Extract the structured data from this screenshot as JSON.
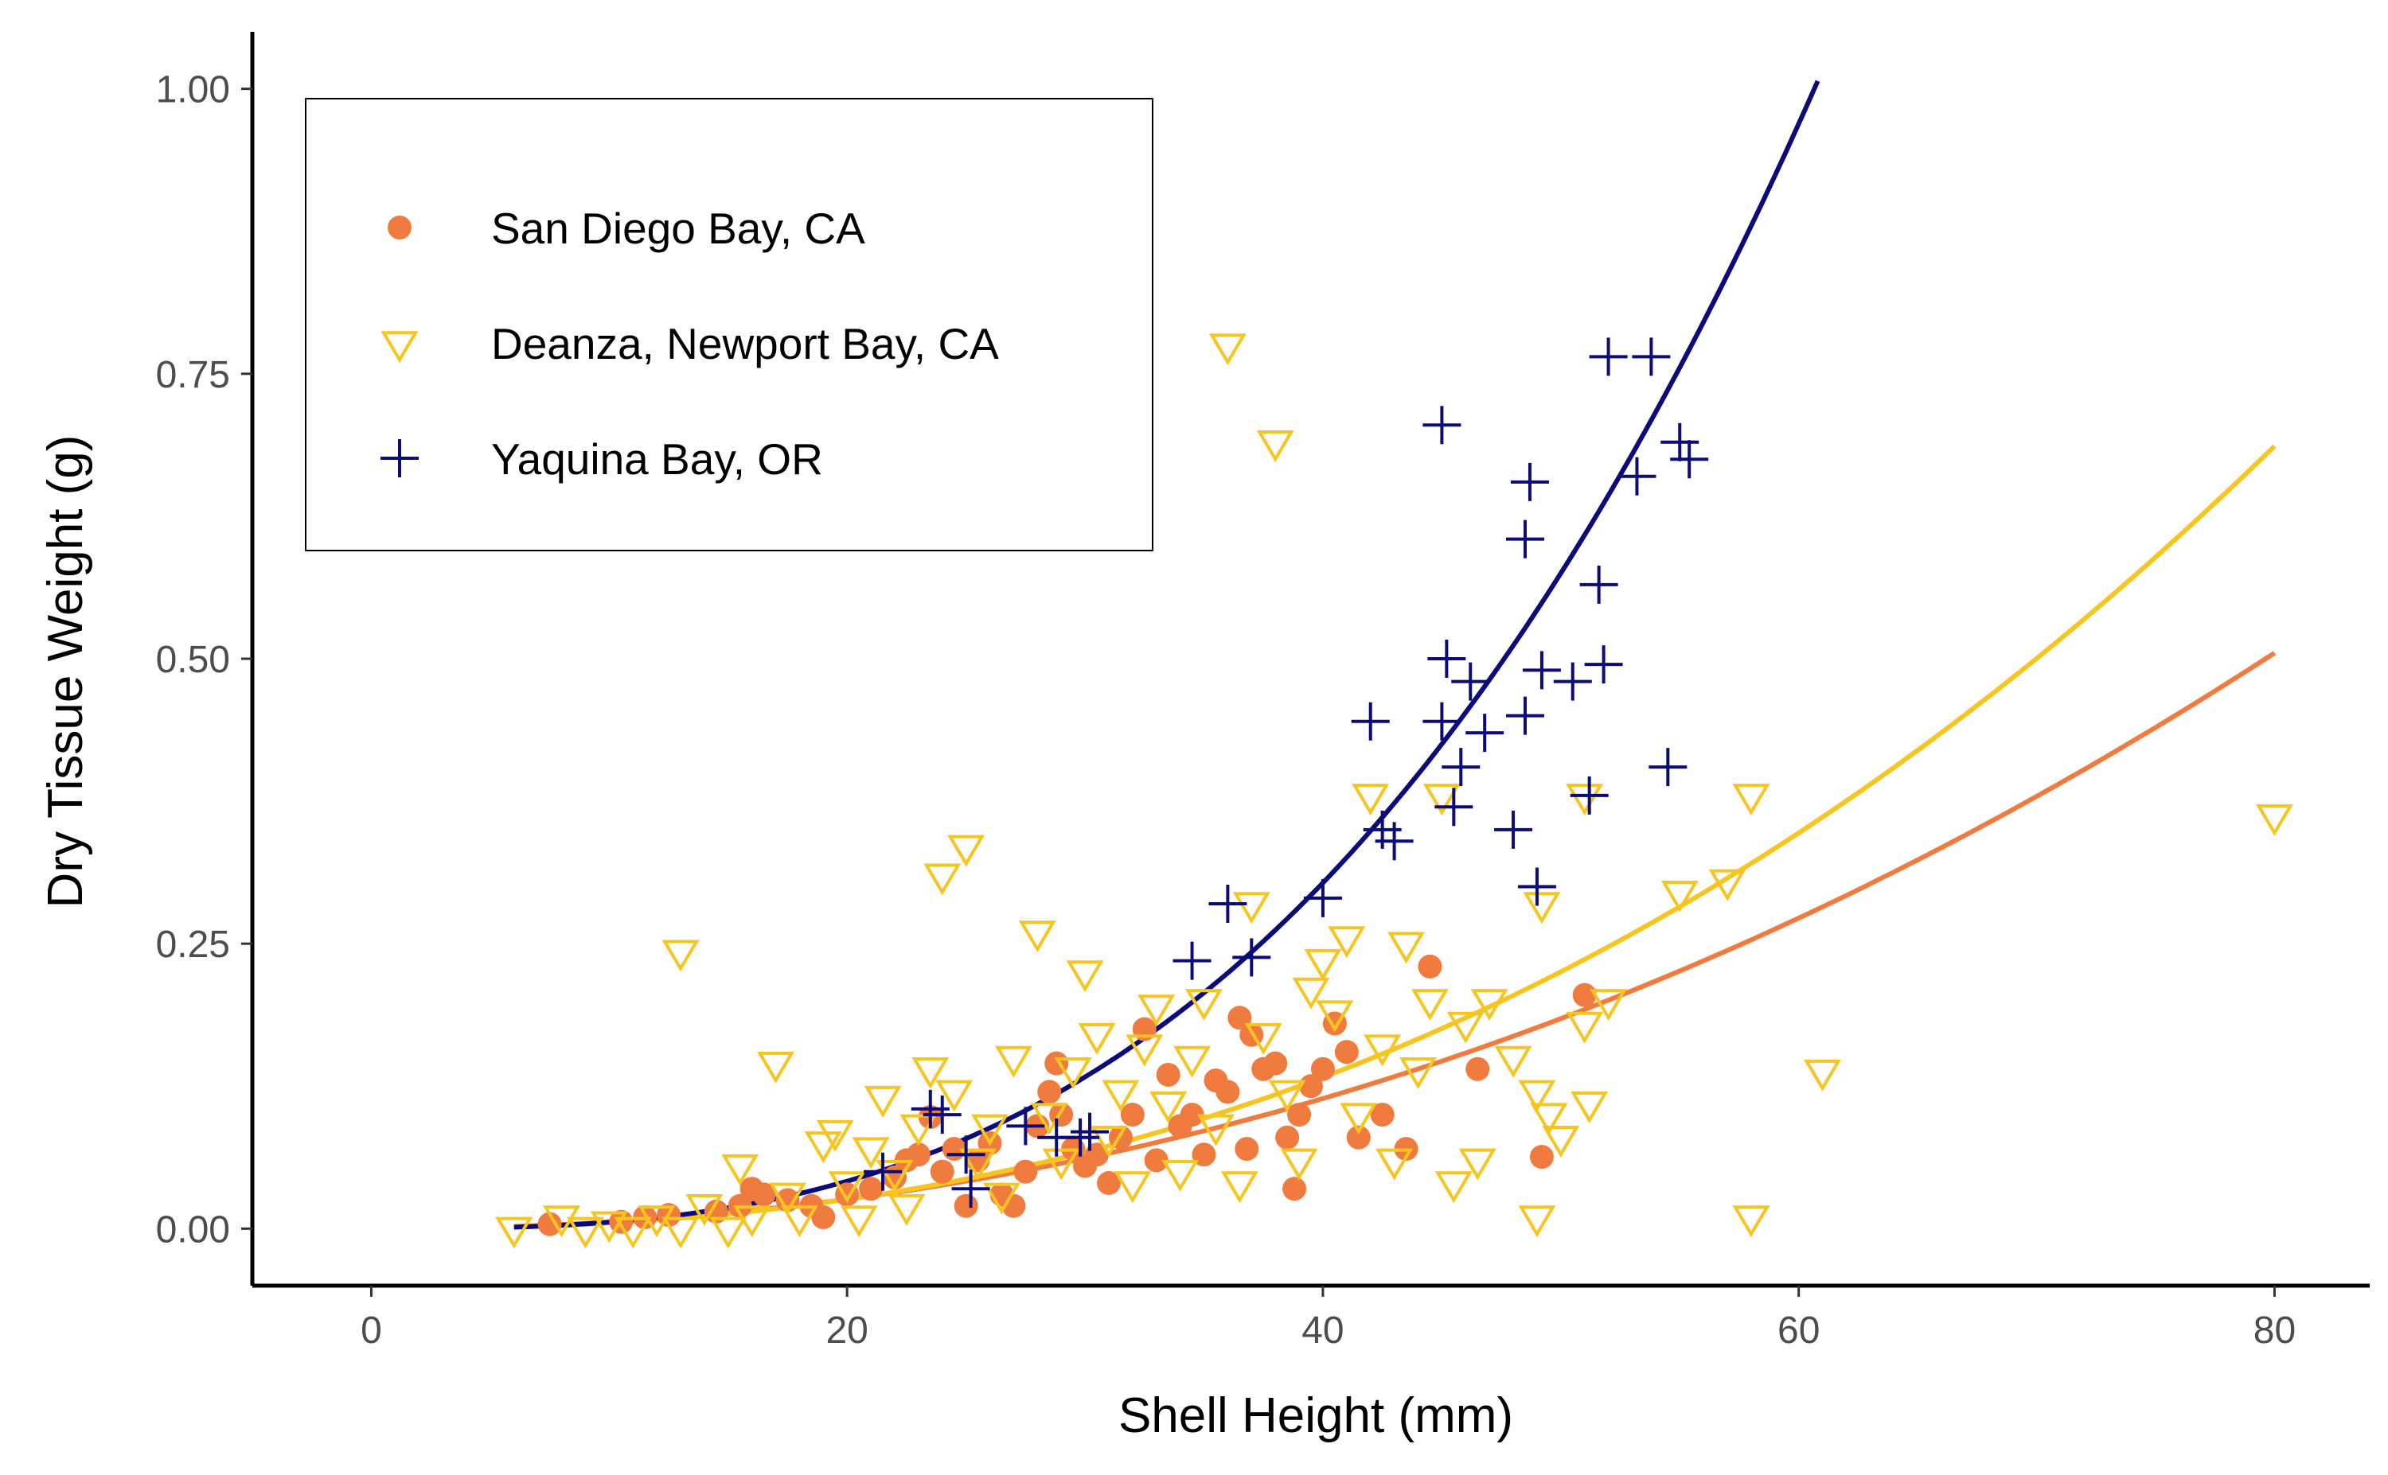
{
  "chart_data": {
    "type": "scatter",
    "xlabel": "Shell Height (mm)",
    "ylabel": "Dry Tissue Weight (g)",
    "xlim": [
      -5,
      84
    ],
    "ylim": [
      -0.05,
      1.05
    ],
    "x_ticks": [
      0,
      20,
      40,
      60,
      80
    ],
    "y_ticks": [
      0.0,
      0.25,
      0.5,
      0.75,
      1.0
    ],
    "x_tick_labels": [
      "0",
      "20",
      "40",
      "60",
      "80"
    ],
    "y_tick_labels": [
      "0.00",
      "0.25",
      "0.50",
      "0.75",
      "1.00"
    ],
    "grid": false,
    "legend_position": "top-left",
    "series": [
      {
        "name": "San Diego Bay, CA",
        "marker": "circle-filled",
        "color": "#ef7b3e",
        "fit": {
          "a": 4.18e-05,
          "b": 2.145,
          "x_range": [
            6.0,
            80.0
          ]
        },
        "points": [
          [
            7.5,
            0.004
          ],
          [
            10.5,
            0.006
          ],
          [
            11.5,
            0.01
          ],
          [
            12.5,
            0.012
          ],
          [
            14.5,
            0.015
          ],
          [
            15.5,
            0.02
          ],
          [
            16.0,
            0.035
          ],
          [
            16.5,
            0.03
          ],
          [
            17.5,
            0.025
          ],
          [
            18.5,
            0.02
          ],
          [
            19.0,
            0.01
          ],
          [
            20.0,
            0.03
          ],
          [
            21.0,
            0.035
          ],
          [
            22.0,
            0.045
          ],
          [
            22.5,
            0.06
          ],
          [
            23.0,
            0.065
          ],
          [
            23.5,
            0.098
          ],
          [
            24.0,
            0.05
          ],
          [
            24.5,
            0.07
          ],
          [
            25.0,
            0.02
          ],
          [
            25.5,
            0.06
          ],
          [
            26.0,
            0.075
          ],
          [
            26.5,
            0.03
          ],
          [
            27.0,
            0.02
          ],
          [
            27.5,
            0.05
          ],
          [
            28.0,
            0.09
          ],
          [
            28.5,
            0.12
          ],
          [
            28.8,
            0.145
          ],
          [
            29.0,
            0.1
          ],
          [
            29.5,
            0.07
          ],
          [
            30.0,
            0.055
          ],
          [
            30.5,
            0.065
          ],
          [
            31.0,
            0.04
          ],
          [
            31.5,
            0.08
          ],
          [
            32.0,
            0.1
          ],
          [
            32.5,
            0.175
          ],
          [
            33.0,
            0.06
          ],
          [
            33.5,
            0.135
          ],
          [
            34.0,
            0.09
          ],
          [
            34.5,
            0.1
          ],
          [
            35.0,
            0.065
          ],
          [
            35.5,
            0.13
          ],
          [
            36.0,
            0.12
          ],
          [
            36.5,
            0.185
          ],
          [
            36.8,
            0.07
          ],
          [
            37.0,
            0.17
          ],
          [
            37.5,
            0.14
          ],
          [
            38.0,
            0.145
          ],
          [
            38.5,
            0.08
          ],
          [
            38.8,
            0.035
          ],
          [
            39.0,
            0.1
          ],
          [
            39.5,
            0.125
          ],
          [
            40.0,
            0.14
          ],
          [
            40.5,
            0.18
          ],
          [
            41.0,
            0.155
          ],
          [
            41.5,
            0.08
          ],
          [
            42.5,
            0.1
          ],
          [
            43.5,
            0.07
          ],
          [
            44.5,
            0.23
          ],
          [
            46.5,
            0.14
          ],
          [
            49.2,
            0.063
          ],
          [
            51.0,
            0.205
          ]
        ]
      },
      {
        "name": "Deanza, Newport Bay, CA",
        "marker": "triangle-down-open",
        "color": "#f7c520",
        "fit": {
          "a": 2.12e-05,
          "b": 2.37,
          "x_range": [
            6.0,
            80.0
          ]
        },
        "points": [
          [
            6.0,
            0.0
          ],
          [
            8.0,
            0.01
          ],
          [
            9.0,
            0.0
          ],
          [
            10.0,
            0.005
          ],
          [
            11.0,
            0.0
          ],
          [
            12.0,
            0.01
          ],
          [
            13.0,
            0.0
          ],
          [
            13.0,
            0.243
          ],
          [
            14.0,
            0.02
          ],
          [
            15.0,
            0.0
          ],
          [
            15.5,
            0.055
          ],
          [
            16.0,
            0.01
          ],
          [
            17.0,
            0.145
          ],
          [
            17.5,
            0.03
          ],
          [
            18.0,
            0.01
          ],
          [
            19.0,
            0.075
          ],
          [
            19.5,
            0.085
          ],
          [
            20.0,
            0.04
          ],
          [
            20.5,
            0.01
          ],
          [
            21.0,
            0.07
          ],
          [
            21.5,
            0.115
          ],
          [
            22.0,
            0.05
          ],
          [
            22.5,
            0.02
          ],
          [
            23.0,
            0.09
          ],
          [
            23.5,
            0.14
          ],
          [
            24.0,
            0.31
          ],
          [
            24.5,
            0.12
          ],
          [
            25.0,
            0.335
          ],
          [
            25.5,
            0.06
          ],
          [
            26.0,
            0.09
          ],
          [
            26.5,
            0.03
          ],
          [
            27.0,
            0.15
          ],
          [
            28.0,
            0.26
          ],
          [
            28.5,
            0.1
          ],
          [
            29.0,
            0.06
          ],
          [
            29.5,
            0.14
          ],
          [
            30.0,
            0.225
          ],
          [
            30.5,
            0.17
          ],
          [
            31.0,
            0.08
          ],
          [
            31.5,
            0.12
          ],
          [
            32.0,
            0.04
          ],
          [
            32.5,
            0.16
          ],
          [
            33.0,
            0.195
          ],
          [
            33.5,
            0.11
          ],
          [
            34.0,
            0.05
          ],
          [
            34.5,
            0.15
          ],
          [
            35.0,
            0.2
          ],
          [
            35.5,
            0.09
          ],
          [
            36.0,
            0.775
          ],
          [
            36.5,
            0.04
          ],
          [
            37.0,
            0.285
          ],
          [
            37.5,
            0.17
          ],
          [
            38.0,
            0.69
          ],
          [
            38.5,
            0.12
          ],
          [
            39.0,
            0.06
          ],
          [
            39.5,
            0.21
          ],
          [
            40.0,
            0.235
          ],
          [
            40.5,
            0.19
          ],
          [
            41.0,
            0.255
          ],
          [
            41.5,
            0.1
          ],
          [
            42.0,
            0.38
          ],
          [
            42.5,
            0.16
          ],
          [
            43.0,
            0.06
          ],
          [
            43.5,
            0.25
          ],
          [
            44.0,
            0.14
          ],
          [
            44.5,
            0.2
          ],
          [
            45.0,
            0.38
          ],
          [
            45.5,
            0.04
          ],
          [
            46.0,
            0.18
          ],
          [
            46.5,
            0.06
          ],
          [
            47.0,
            0.2
          ],
          [
            48.0,
            0.15
          ],
          [
            49.0,
            0.12
          ],
          [
            49.0,
            0.01
          ],
          [
            49.2,
            0.285
          ],
          [
            49.5,
            0.1
          ],
          [
            50.0,
            0.08
          ],
          [
            51.0,
            0.38
          ],
          [
            51.0,
            0.18
          ],
          [
            51.2,
            0.11
          ],
          [
            52.0,
            0.2
          ],
          [
            55.0,
            0.295
          ],
          [
            57.0,
            0.305
          ],
          [
            58.0,
            0.01
          ],
          [
            58.0,
            0.38
          ],
          [
            61.0,
            0.138
          ],
          [
            80.0,
            0.362
          ]
        ]
      },
      {
        "name": "Yaquina Bay, OR",
        "marker": "plus",
        "color": "#0c0c78",
        "fit": {
          "a": 7.8e-06,
          "b": 2.865,
          "x_range": [
            6.0,
            60.8
          ]
        },
        "points": [
          [
            21.5,
            0.05
          ],
          [
            23.5,
            0.105
          ],
          [
            24.0,
            0.1
          ],
          [
            25.0,
            0.065
          ],
          [
            25.2,
            0.035
          ],
          [
            27.5,
            0.09
          ],
          [
            28.8,
            0.08
          ],
          [
            29.8,
            0.08
          ],
          [
            30.2,
            0.085
          ],
          [
            34.5,
            0.235
          ],
          [
            36.0,
            0.285
          ],
          [
            37.0,
            0.238
          ],
          [
            40.0,
            0.29
          ],
          [
            42.0,
            0.445
          ],
          [
            42.5,
            0.35
          ],
          [
            43.0,
            0.34
          ],
          [
            45.0,
            0.705
          ],
          [
            45.0,
            0.445
          ],
          [
            45.2,
            0.5
          ],
          [
            45.5,
            0.37
          ],
          [
            45.8,
            0.405
          ],
          [
            46.2,
            0.48
          ],
          [
            46.8,
            0.435
          ],
          [
            48.0,
            0.35
          ],
          [
            48.5,
            0.605
          ],
          [
            48.5,
            0.45
          ],
          [
            48.7,
            0.655
          ],
          [
            49.0,
            0.3
          ],
          [
            49.2,
            0.49
          ],
          [
            50.5,
            0.48
          ],
          [
            51.2,
            0.38
          ],
          [
            51.6,
            0.565
          ],
          [
            51.8,
            0.495
          ],
          [
            52.0,
            0.765
          ],
          [
            53.2,
            0.66
          ],
          [
            53.8,
            0.765
          ],
          [
            54.5,
            0.405
          ],
          [
            55.0,
            0.69
          ],
          [
            55.4,
            0.675
          ]
        ]
      }
    ]
  }
}
